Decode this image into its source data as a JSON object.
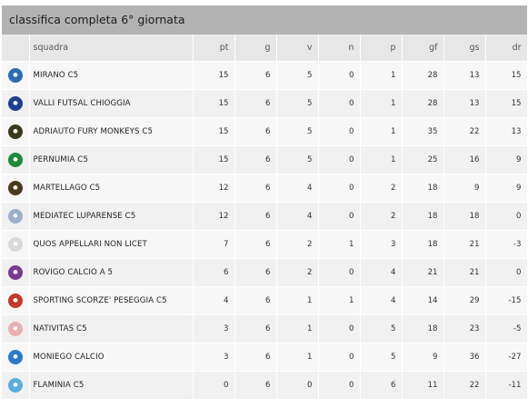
{
  "title": "classifica completa 6° giornata",
  "columns": {
    "team": "squadra",
    "pt": "pt",
    "g": "g",
    "v": "v",
    "n": "n",
    "p": "p",
    "gf": "gf",
    "gs": "gs",
    "dr": "dr"
  },
  "rows": [
    {
      "team": "MIRANO C5",
      "pt": "15",
      "g": "6",
      "v": "5",
      "n": "0",
      "p": "1",
      "gf": "28",
      "gs": "13",
      "dr": "15",
      "logo_icon": "mirano-crest-icon",
      "logo_color": "#2b6cb5"
    },
    {
      "team": "VALLI FUTSAL CHIOGGIA",
      "pt": "15",
      "g": "6",
      "v": "5",
      "n": "0",
      "p": "1",
      "gf": "28",
      "gs": "13",
      "dr": "15",
      "logo_icon": "valli-crest-icon",
      "logo_color": "#1c3f8f"
    },
    {
      "team": "ADRIAUTO FURY MONKEYS C5",
      "pt": "15",
      "g": "6",
      "v": "5",
      "n": "0",
      "p": "1",
      "gf": "35",
      "gs": "22",
      "dr": "13",
      "logo_icon": "fury-monkeys-crest-icon",
      "logo_color": "#3a3a1a"
    },
    {
      "team": "PERNUMIA C5",
      "pt": "15",
      "g": "6",
      "v": "5",
      "n": "0",
      "p": "1",
      "gf": "25",
      "gs": "16",
      "dr": "9",
      "logo_icon": "pernumia-crest-icon",
      "logo_color": "#1f8a3a"
    },
    {
      "team": "MARTELLAGO C5",
      "pt": "12",
      "g": "6",
      "v": "4",
      "n": "0",
      "p": "2",
      "gf": "18",
      "gs": "9",
      "dr": "9",
      "logo_icon": "martellago-crest-icon",
      "logo_color": "#4a3a1a"
    },
    {
      "team": "MEDIATEC LUPARENSE C5",
      "pt": "12",
      "g": "6",
      "v": "4",
      "n": "0",
      "p": "2",
      "gf": "18",
      "gs": "18",
      "dr": "0",
      "logo_icon": "luparense-crest-icon",
      "logo_color": "#9bb0c8"
    },
    {
      "team": "QUOS APPELLARI NON LICET",
      "pt": "7",
      "g": "6",
      "v": "2",
      "n": "1",
      "p": "3",
      "gf": "18",
      "gs": "21",
      "dr": "-3",
      "logo_icon": "quos-crest-icon",
      "logo_color": "#d9d9d9"
    },
    {
      "team": "ROVIGO CALCIO A 5",
      "pt": "6",
      "g": "6",
      "v": "2",
      "n": "0",
      "p": "4",
      "gf": "21",
      "gs": "21",
      "dr": "0",
      "logo_icon": "rovigo-crest-icon",
      "logo_color": "#7a3a8f"
    },
    {
      "team": "SPORTING SCORZE' PESEGGIA C5",
      "pt": "4",
      "g": "6",
      "v": "1",
      "n": "1",
      "p": "4",
      "gf": "14",
      "gs": "29",
      "dr": "-15",
      "logo_icon": "sporting-crest-icon",
      "logo_color": "#c23a2a"
    },
    {
      "team": "NATIVITAS C5",
      "pt": "3",
      "g": "6",
      "v": "1",
      "n": "0",
      "p": "5",
      "gf": "18",
      "gs": "23",
      "dr": "-5",
      "logo_icon": "nativitas-crest-icon",
      "logo_color": "#e8b0b0"
    },
    {
      "team": "MONIEGO CALCIO",
      "pt": "3",
      "g": "6",
      "v": "1",
      "n": "0",
      "p": "5",
      "gf": "9",
      "gs": "36",
      "dr": "-27",
      "logo_icon": "moniego-crest-icon",
      "logo_color": "#2a7ac8"
    },
    {
      "team": "FLAMINIA C5",
      "pt": "0",
      "g": "6",
      "v": "0",
      "n": "0",
      "p": "6",
      "gf": "11",
      "gs": "22",
      "dr": "-11",
      "logo_icon": "flaminia-crest-icon",
      "logo_color": "#5aaede"
    }
  ]
}
